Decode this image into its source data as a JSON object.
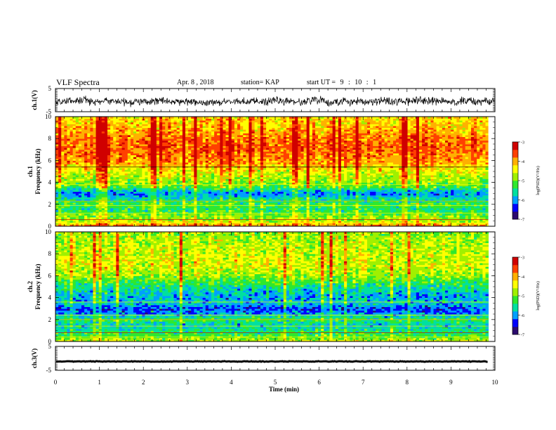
{
  "header": {
    "title": "VLF Spectra",
    "date": "Apr. 8 , 2018",
    "station_label": "station= KAP",
    "start_label": "start UT =",
    "start_h": "9",
    "colon1": ":",
    "start_m": "10",
    "colon2": ":",
    "start_s": "1"
  },
  "colors": {
    "colormap": [
      "#2b0a6e",
      "#0000ff",
      "#00a0ff",
      "#00e0a0",
      "#2ee82e",
      "#a0f000",
      "#ffff00",
      "#ffb000",
      "#ff4000",
      "#d00000"
    ],
    "trace": "#000000",
    "background": "#ffffff"
  },
  "chart_data": [
    {
      "type": "line",
      "name": "ch1-waveform",
      "ylabel": "ch.1(V)",
      "ylim": [
        -5,
        5
      ],
      "yticks": [
        "5",
        "-5"
      ],
      "xlim": [
        0,
        10
      ],
      "baseline": 0,
      "amplitude": 1.8
    },
    {
      "type": "heatmap",
      "name": "ch1-spectrogram",
      "ylabel": "ch.1",
      "ylabel2": "Frequency (kHz)",
      "ylim": [
        0,
        10
      ],
      "yticks": [
        "0",
        "2",
        "4",
        "6",
        "8",
        "10"
      ],
      "xlim": [
        0,
        9.85
      ],
      "colorbar": {
        "label": "log(PSD)(V²/Hz)",
        "range": [
          -7,
          -3
        ],
        "ticks": [
          "-3",
          "-4",
          "-5",
          "-6",
          "-7"
        ]
      },
      "level_profile": [
        {
          "f": 0.0,
          "v": -3.8
        },
        {
          "f": 0.5,
          "v": -4.8
        },
        {
          "f": 1.0,
          "v": -5.0
        },
        {
          "f": 1.5,
          "v": -5.5
        },
        {
          "f": 2.0,
          "v": -5.2
        },
        {
          "f": 2.5,
          "v": -5.6
        },
        {
          "f": 3.0,
          "v": -6.2
        },
        {
          "f": 3.5,
          "v": -5.4
        },
        {
          "f": 4.0,
          "v": -5.0
        },
        {
          "f": 5.0,
          "v": -4.6
        },
        {
          "f": 6.0,
          "v": -4.0
        },
        {
          "f": 7.0,
          "v": -3.8
        },
        {
          "f": 8.0,
          "v": -3.9
        },
        {
          "f": 9.0,
          "v": -4.2
        },
        {
          "f": 10.0,
          "v": -4.4
        }
      ]
    },
    {
      "type": "heatmap",
      "name": "ch2-spectrogram",
      "ylabel": "ch.2",
      "ylabel2": "Frequency (kHz)",
      "ylim": [
        0,
        10
      ],
      "yticks": [
        "0",
        "2",
        "4",
        "6",
        "8",
        "10"
      ],
      "xlim": [
        0,
        9.85
      ],
      "colorbar": {
        "label": "log(PSD)(V²/Hz)",
        "range": [
          -7,
          -3
        ],
        "ticks": [
          "-3",
          "-4",
          "-5",
          "-6",
          "-7"
        ]
      },
      "level_profile": [
        {
          "f": 0.0,
          "v": -4.6
        },
        {
          "f": 0.5,
          "v": -5.2
        },
        {
          "f": 1.0,
          "v": -5.5
        },
        {
          "f": 1.5,
          "v": -5.8
        },
        {
          "f": 2.0,
          "v": -5.3
        },
        {
          "f": 2.5,
          "v": -6.0
        },
        {
          "f": 3.0,
          "v": -6.4
        },
        {
          "f": 3.5,
          "v": -5.8
        },
        {
          "f": 4.0,
          "v": -6.0
        },
        {
          "f": 5.0,
          "v": -5.6
        },
        {
          "f": 6.0,
          "v": -4.9
        },
        {
          "f": 7.0,
          "v": -4.6
        },
        {
          "f": 8.0,
          "v": -4.7
        },
        {
          "f": 9.0,
          "v": -4.8
        },
        {
          "f": 10.0,
          "v": -4.9
        }
      ]
    },
    {
      "type": "line",
      "name": "ch3-waveform",
      "ylabel": "ch.3(V)",
      "ylim": [
        -5,
        5
      ],
      "yticks": [
        "5",
        "-5"
      ],
      "xlim": [
        0,
        9.85
      ],
      "baseline": 0,
      "amplitude": 0.15
    }
  ],
  "xaxis": {
    "xlabel": "Time (min)",
    "xlim": [
      0,
      10
    ],
    "ticks": [
      "0",
      "1",
      "2",
      "3",
      "4",
      "5",
      "6",
      "7",
      "8",
      "9",
      "10"
    ]
  }
}
